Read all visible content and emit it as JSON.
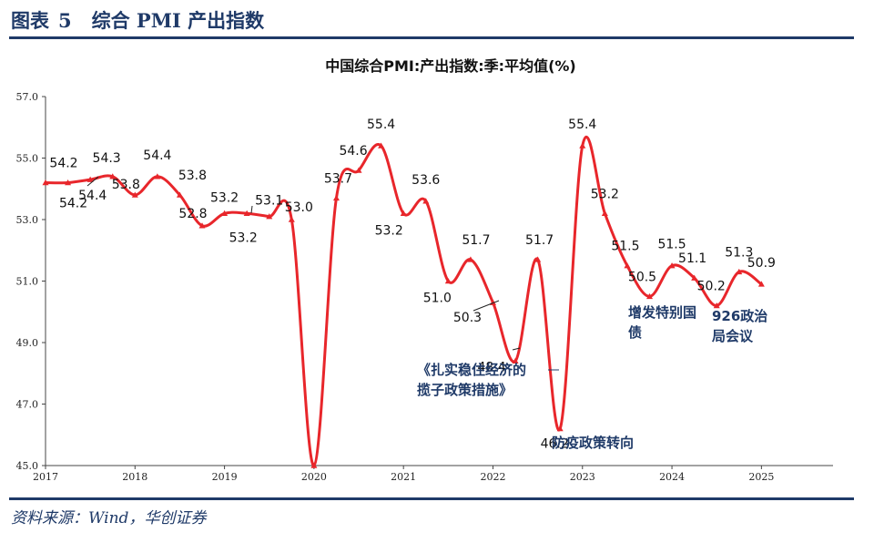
{
  "header": {
    "figure_label": "图表",
    "figure_number": "5",
    "figure_title": "综合 PMI 产出指数"
  },
  "source": "资料来源：Wind，华创证券",
  "chart_data": {
    "type": "line",
    "title": "中国综合PMI:产出指数:季:平均值(%)",
    "xlabel": "",
    "ylabel": "",
    "ylim": [
      45.0,
      57.0
    ],
    "yticks": [
      "45.0",
      "47.0",
      "49.0",
      "51.0",
      "53.0",
      "55.0",
      "57.0"
    ],
    "xticks": [
      "2017",
      "2018",
      "2019",
      "2020",
      "2021",
      "2022",
      "2023",
      "2024",
      "2025"
    ],
    "xlim": [
      2017.0,
      2025.8
    ],
    "grid": false,
    "legend": "none",
    "line_color": "#e8262b",
    "x": [
      2017.0,
      2017.25,
      2017.5,
      2017.75,
      2018.0,
      2018.25,
      2018.5,
      2018.75,
      2019.0,
      2019.25,
      2019.5,
      2019.75,
      2020.0,
      2020.25,
      2020.5,
      2020.75,
      2021.0,
      2021.25,
      2021.5,
      2021.75,
      2022.0,
      2022.25,
      2022.5,
      2022.75,
      2023.0,
      2023.25,
      2023.5,
      2023.75,
      2024.0,
      2024.25,
      2024.5,
      2024.75,
      2025.0
    ],
    "values": [
      54.2,
      54.2,
      54.3,
      54.4,
      53.8,
      54.4,
      53.8,
      52.8,
      53.2,
      53.2,
      53.1,
      53.0,
      45.0,
      53.7,
      54.6,
      55.4,
      53.2,
      53.6,
      51.0,
      51.7,
      50.3,
      48.4,
      51.7,
      46.2,
      55.4,
      53.2,
      51.5,
      50.5,
      51.5,
      51.1,
      50.2,
      51.3,
      50.9
    ],
    "labels": [
      "54.2",
      "54.2",
      "54.3",
      "54.4",
      "53.8",
      "54.4",
      "53.8",
      "52.8",
      "53.2",
      "53.2",
      "53.1",
      "53.0",
      "",
      "53.7",
      "54.6",
      "55.4",
      "53.2",
      "53.6",
      "51.0",
      "51.7",
      "50.3",
      "48.4",
      "51.7",
      "46.2",
      "55.4",
      "53.2",
      "51.5",
      "50.5",
      "51.5",
      "51.1",
      "50.2",
      "51.3",
      "50.9"
    ],
    "annotations": [
      {
        "lines": [
          "《扎实稳住经济的",
          "揽子政策措施》"
        ],
        "x": 2022.25,
        "y": 48.4
      },
      {
        "lines": [
          "防疫政策转向"
        ],
        "x": 2022.75,
        "y": 46.2
      },
      {
        "lines": [
          "增发特别国",
          "债"
        ],
        "x": 2023.75,
        "y": 50.5
      },
      {
        "lines": [
          "926政治",
          "局会议"
        ],
        "x": 2024.5,
        "y": 50.2
      }
    ]
  }
}
